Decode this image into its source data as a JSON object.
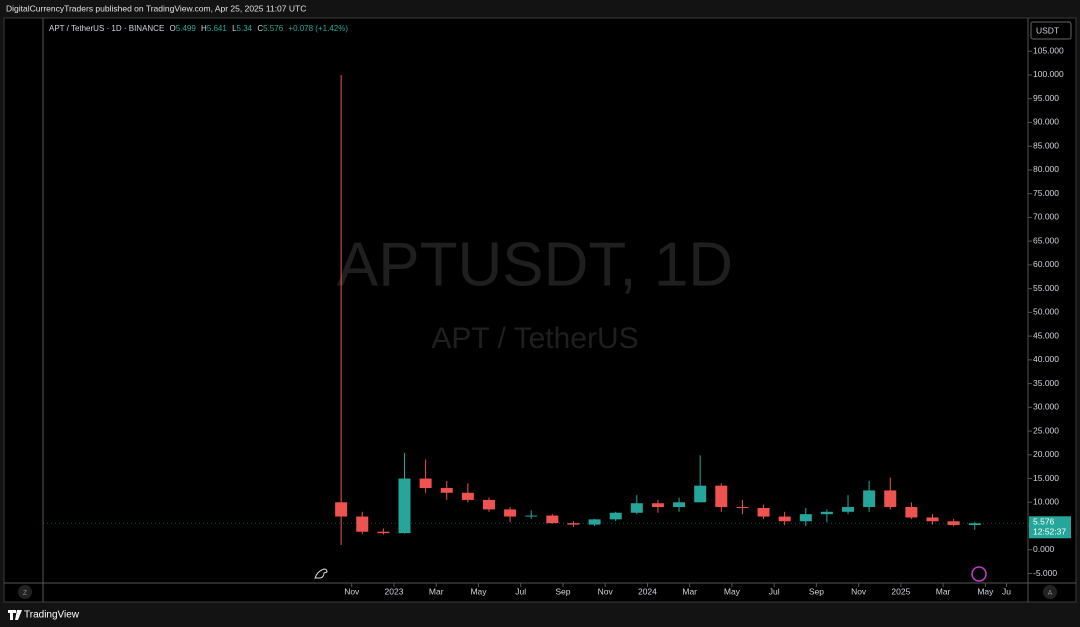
{
  "header": {
    "text": "DigitalCurrencyTraders published on TradingView.com, Apr 25, 2025 11:07 UTC"
  },
  "footer": {
    "brand": "TradingView",
    "left_button": "Z",
    "right_button": "A"
  },
  "chart_data": {
    "type": "candlestick",
    "watermark": "APTUSDT, 1D",
    "watermark_sub": "APT / TetherUS",
    "currency": "USDT",
    "legend": {
      "symbol": "APT / TetherUS · 1D · BINANCE",
      "open_label": "O",
      "open": 5.499,
      "high_label": "H",
      "high": 5.641,
      "low_label": "L",
      "low": 5.34,
      "close_label": "C",
      "close": 5.576,
      "change": "+0.078 (+1.42%)"
    },
    "countdown": "12:52:37",
    "up_color": "#26a69a",
    "down_color": "#ef5350",
    "x": [
      "2022-10",
      "2022-11",
      "2022-12",
      "2023-01",
      "2023-02",
      "2023-03",
      "2023-04",
      "2023-05",
      "2023-06",
      "2023-07",
      "2023-08",
      "2023-09",
      "2023-10",
      "2023-11",
      "2023-12",
      "2024-01",
      "2024-02",
      "2024-03",
      "2024-04",
      "2024-05",
      "2024-06",
      "2024-07",
      "2024-08",
      "2024-09",
      "2024-10",
      "2024-11",
      "2024-12",
      "2025-01",
      "2025-02",
      "2025-03",
      "2025-04"
    ],
    "open": [
      10,
      7,
      3.8,
      3.5,
      15,
      13,
      12,
      10.5,
      8.5,
      7,
      7.2,
      5.6,
      5.3,
      6.4,
      7.8,
      9.8,
      9,
      10,
      13.5,
      9,
      8.8,
      7,
      6,
      7.5,
      8,
      9,
      12.5,
      9,
      6.8,
      6,
      5.2
    ],
    "high": [
      100,
      8,
      4.5,
      20.4,
      19,
      14.5,
      14,
      11,
      9,
      8.3,
      7.5,
      6,
      6.5,
      8,
      11.5,
      10.5,
      11,
      19.9,
      14,
      10.5,
      9.5,
      8,
      8.8,
      8.5,
      11.5,
      14.5,
      15.2,
      10,
      7.5,
      6.5,
      5.8
    ],
    "low": [
      1,
      3.3,
      3.2,
      3.4,
      12,
      10.5,
      10,
      8,
      5.8,
      6.5,
      5.5,
      4.8,
      5,
      6,
      7.5,
      7.8,
      8,
      10,
      8,
      7.5,
      6.5,
      5.2,
      5,
      5.8,
      7.5,
      8,
      8.5,
      6.5,
      5.3,
      4.9,
      4.2
    ],
    "close": [
      7,
      3.8,
      3.5,
      15,
      13,
      12,
      10.5,
      8.5,
      7,
      7.2,
      5.6,
      5.3,
      6.4,
      7.8,
      9.8,
      9,
      10,
      13.5,
      9,
      8.8,
      7,
      6,
      7.5,
      8,
      9,
      12.5,
      9,
      6.8,
      6,
      5.2,
      5.576
    ],
    "ylim": [
      -7,
      112
    ],
    "yticks": [
      {
        "value": -5,
        "label": "-5.000"
      },
      {
        "value": 0,
        "label": "0.000"
      },
      {
        "value": 5,
        "label": "5.000"
      },
      {
        "value": 10,
        "label": "10.000"
      },
      {
        "value": 15,
        "label": "15.000"
      },
      {
        "value": 20,
        "label": "20.000"
      },
      {
        "value": 25,
        "label": "25.000"
      },
      {
        "value": 30,
        "label": "30.000"
      },
      {
        "value": 35,
        "label": "35.000"
      },
      {
        "value": 40,
        "label": "40.000"
      },
      {
        "value": 45,
        "label": "45.000"
      },
      {
        "value": 50,
        "label": "50.000"
      },
      {
        "value": 55,
        "label": "55.000"
      },
      {
        "value": 60,
        "label": "60.000"
      },
      {
        "value": 65,
        "label": "65.000"
      },
      {
        "value": 70,
        "label": "70.000"
      },
      {
        "value": 75,
        "label": "75.000"
      },
      {
        "value": 80,
        "label": "80.000"
      },
      {
        "value": 85,
        "label": "85.000"
      },
      {
        "value": 90,
        "label": "90.000"
      },
      {
        "value": 95,
        "label": "95.000"
      },
      {
        "value": 100,
        "label": "100.000"
      },
      {
        "value": 105,
        "label": "105.000"
      }
    ],
    "xticks": [
      {
        "value": "2022-11",
        "label": "Nov"
      },
      {
        "value": "2023-01",
        "label": "2023"
      },
      {
        "value": "2023-03",
        "label": "Mar"
      },
      {
        "value": "2023-05",
        "label": "May"
      },
      {
        "value": "2023-07",
        "label": "Jul"
      },
      {
        "value": "2023-09",
        "label": "Sep"
      },
      {
        "value": "2023-11",
        "label": "Nov"
      },
      {
        "value": "2024-01",
        "label": "2024"
      },
      {
        "value": "2024-03",
        "label": "Mar"
      },
      {
        "value": "2024-05",
        "label": "May"
      },
      {
        "value": "2024-07",
        "label": "Jul"
      },
      {
        "value": "2024-09",
        "label": "Sep"
      },
      {
        "value": "2024-11",
        "label": "Nov"
      },
      {
        "value": "2025-01",
        "label": "2025"
      },
      {
        "value": "2025-03",
        "label": "Mar"
      },
      {
        "value": "2025-05",
        "label": "May"
      },
      {
        "value": "2025-06",
        "label": "Ju"
      }
    ]
  }
}
